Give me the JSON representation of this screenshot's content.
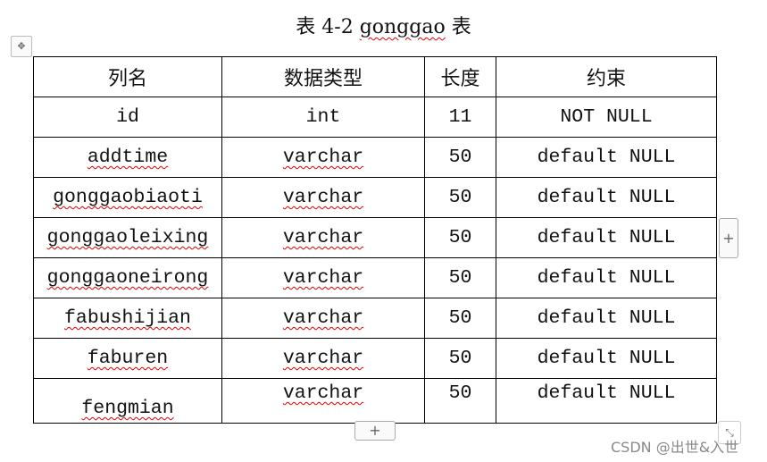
{
  "title": {
    "prefix": "表 4-2 ",
    "name": "gonggao",
    "suffix": " 表"
  },
  "table": {
    "headers": [
      "列名",
      "数据类型",
      "长度",
      "约束"
    ],
    "rows": [
      [
        "id",
        "int",
        "11",
        "NOT NULL"
      ],
      [
        "addtime",
        "varchar",
        "50",
        "default NULL"
      ],
      [
        "gonggaobiaoti",
        "varchar",
        "50",
        "default NULL"
      ],
      [
        "gonggaoleixing",
        "varchar",
        "50",
        "default NULL"
      ],
      [
        "gonggaoneirong",
        "varchar",
        "50",
        "default NULL"
      ],
      [
        "fabushijian",
        "varchar",
        "50",
        "default NULL"
      ],
      [
        "faburen",
        "varchar",
        "50",
        "default NULL"
      ],
      [
        "fengmian",
        "varchar",
        "50",
        "default NULL"
      ]
    ]
  },
  "controls": {
    "add_column": "+",
    "add_row": "+",
    "move": "✥",
    "resize": "⤡"
  },
  "watermark": "CSDN @出世&入世"
}
